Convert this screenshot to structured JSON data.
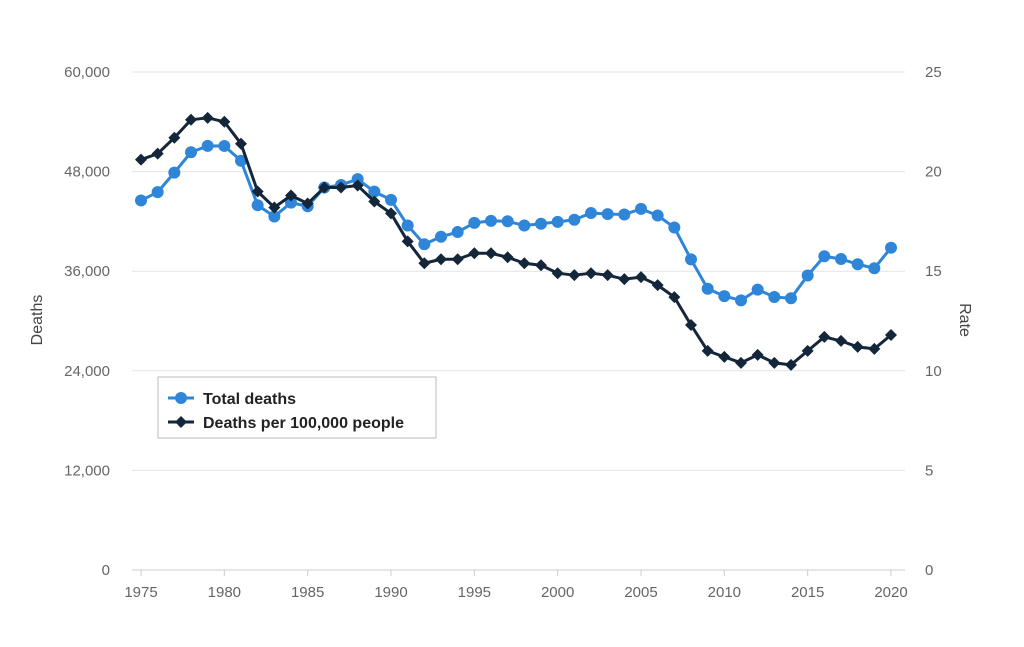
{
  "chart_data": {
    "type": "line",
    "title": "",
    "xlabel": "",
    "ylabel": "Deaths",
    "y2label": "Rate",
    "ylim": [
      0,
      60000
    ],
    "y2lim": [
      0,
      25
    ],
    "xlim": [
      1975,
      2020
    ],
    "grid": true,
    "legend_position": "center-left",
    "x_ticks": [
      "1975",
      "1980",
      "1985",
      "1990",
      "1995",
      "2000",
      "2005",
      "2010",
      "2015",
      "2020"
    ],
    "y_ticks": [
      "0",
      "12,000",
      "24,000",
      "36,000",
      "48,000",
      "60,000"
    ],
    "y2_ticks": [
      "0",
      "5",
      "10",
      "15",
      "20",
      "25"
    ],
    "x": [
      1975,
      1976,
      1977,
      1978,
      1979,
      1980,
      1981,
      1982,
      1983,
      1984,
      1985,
      1986,
      1987,
      1988,
      1989,
      1990,
      1991,
      1992,
      1993,
      1994,
      1995,
      1996,
      1997,
      1998,
      1999,
      2000,
      2001,
      2002,
      2003,
      2004,
      2005,
      2006,
      2007,
      2008,
      2009,
      2010,
      2011,
      2012,
      2013,
      2014,
      2015,
      2016,
      2017,
      2018,
      2019,
      2020
    ],
    "series": [
      {
        "name": "Total deaths",
        "axis": "left",
        "color": "#2f86d9",
        "marker": "circle",
        "values": [
          44525,
          45523,
          47878,
          50331,
          51093,
          51091,
          49301,
          43945,
          42589,
          44257,
          43825,
          46087,
          46390,
          47087,
          45582,
          44599,
          41508,
          39250,
          40150,
          40716,
          41817,
          42065,
          42013,
          41501,
          41717,
          41945,
          42196,
          43005,
          42884,
          42836,
          43510,
          42708,
          41259,
          37423,
          33883,
          32999,
          32479,
          33782,
          32893,
          32744,
          35484,
          37806,
          37473,
          36835,
          36355,
          38824
        ]
      },
      {
        "name": "Deaths per 100,000 people",
        "axis": "right",
        "color": "#13263a",
        "marker": "diamond",
        "values": [
          20.6,
          20.9,
          21.7,
          22.6,
          22.7,
          22.5,
          21.4,
          19.0,
          18.2,
          18.8,
          18.4,
          19.2,
          19.2,
          19.3,
          18.5,
          17.9,
          16.5,
          15.4,
          15.6,
          15.6,
          15.9,
          15.9,
          15.7,
          15.4,
          15.3,
          14.9,
          14.8,
          14.9,
          14.8,
          14.6,
          14.7,
          14.3,
          13.7,
          12.3,
          11.0,
          10.7,
          10.4,
          10.8,
          10.4,
          10.3,
          11.0,
          11.7,
          11.5,
          11.2,
          11.1,
          11.8
        ]
      }
    ]
  }
}
